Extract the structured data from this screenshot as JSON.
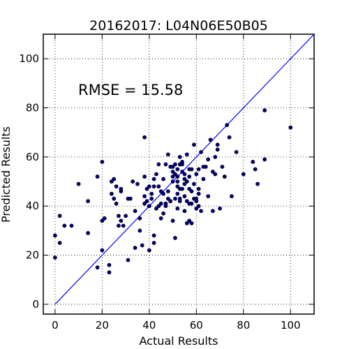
{
  "chart_data": {
    "type": "scatter",
    "title": "20162017: L04N06E50B05",
    "xlabel": "Actual Results",
    "ylabel": "Predicted Results",
    "xlim": [
      -5,
      110
    ],
    "ylim": [
      -4,
      110
    ],
    "xticks": [
      0,
      20,
      40,
      60,
      80,
      100
    ],
    "yticks": [
      0,
      20,
      40,
      60,
      80,
      100
    ],
    "grid": true,
    "annotation": "RMSE = 15.58",
    "reference_line": {
      "from": [
        0,
        0
      ],
      "to": [
        110,
        110
      ]
    },
    "colors": {
      "points": "#000080",
      "point_edge": "#000000",
      "reference_line": "#0000ff"
    },
    "x": [
      0,
      0,
      2,
      2,
      4,
      7,
      10,
      14,
      14,
      18,
      18,
      20,
      20,
      20,
      21,
      23,
      23,
      24,
      24,
      25,
      25,
      26,
      26,
      27,
      27,
      28,
      28,
      28,
      29,
      30,
      31,
      31,
      32,
      33,
      34,
      34,
      35,
      36,
      36,
      37,
      38,
      38,
      38,
      38,
      39,
      39,
      40,
      40,
      40,
      40,
      41,
      41,
      42,
      42,
      42,
      42,
      43,
      43,
      44,
      44,
      44,
      45,
      45,
      45,
      46,
      46,
      46,
      47,
      47,
      47,
      48,
      48,
      48,
      49,
      49,
      49,
      50,
      50,
      50,
      50,
      50,
      51,
      51,
      51,
      51,
      52,
      52,
      52,
      52,
      52,
      52,
      53,
      53,
      53,
      53,
      53,
      54,
      54,
      54,
      54,
      55,
      55,
      55,
      55,
      55,
      56,
      56,
      56,
      56,
      57,
      57,
      57,
      57,
      57,
      58,
      58,
      58,
      58,
      59,
      59,
      59,
      60,
      60,
      60,
      60,
      61,
      61,
      61,
      61,
      62,
      62,
      63,
      63,
      64,
      65,
      65,
      66,
      67,
      67,
      68,
      68,
      69,
      69,
      70,
      71,
      72,
      73,
      74,
      75,
      77,
      80,
      84,
      85,
      86,
      89,
      89,
      100
    ],
    "y": [
      19,
      28,
      25,
      36,
      32,
      32,
      49,
      29,
      42,
      15,
      52,
      58,
      34,
      22,
      35,
      13,
      16,
      50,
      45,
      43,
      51,
      41,
      48,
      32,
      36,
      46,
      47,
      34,
      32,
      36,
      43,
      18,
      43,
      50,
      23,
      38,
      49,
      30,
      35,
      24,
      68,
      52,
      44,
      41,
      42,
      47,
      22,
      40,
      40,
      48,
      45,
      43,
      51,
      48,
      28,
      25,
      39,
      53,
      57,
      48,
      40,
      35,
      46,
      41,
      37,
      45,
      51,
      41,
      40,
      57,
      43,
      46,
      61,
      42,
      56,
      42,
      50,
      52,
      54,
      34,
      56,
      27,
      43,
      57,
      53,
      45,
      48,
      55,
      52,
      39,
      50,
      60,
      57,
      47,
      43,
      42,
      58,
      54,
      47,
      57,
      44,
      51,
      49,
      38,
      53,
      33,
      50,
      42,
      61,
      55,
      52,
      47,
      41,
      34,
      46,
      33,
      41,
      55,
      65,
      43,
      49,
      53,
      43,
      39,
      42,
      55,
      45,
      40,
      47,
      62,
      38,
      51,
      56,
      56,
      44,
      59,
      67,
      38,
      54,
      53,
      60,
      63,
      65,
      39,
      56,
      52,
      73,
      68,
      44,
      62,
      53,
      58,
      55,
      49,
      59,
      79,
      72
    ],
    "points_note": ""
  }
}
